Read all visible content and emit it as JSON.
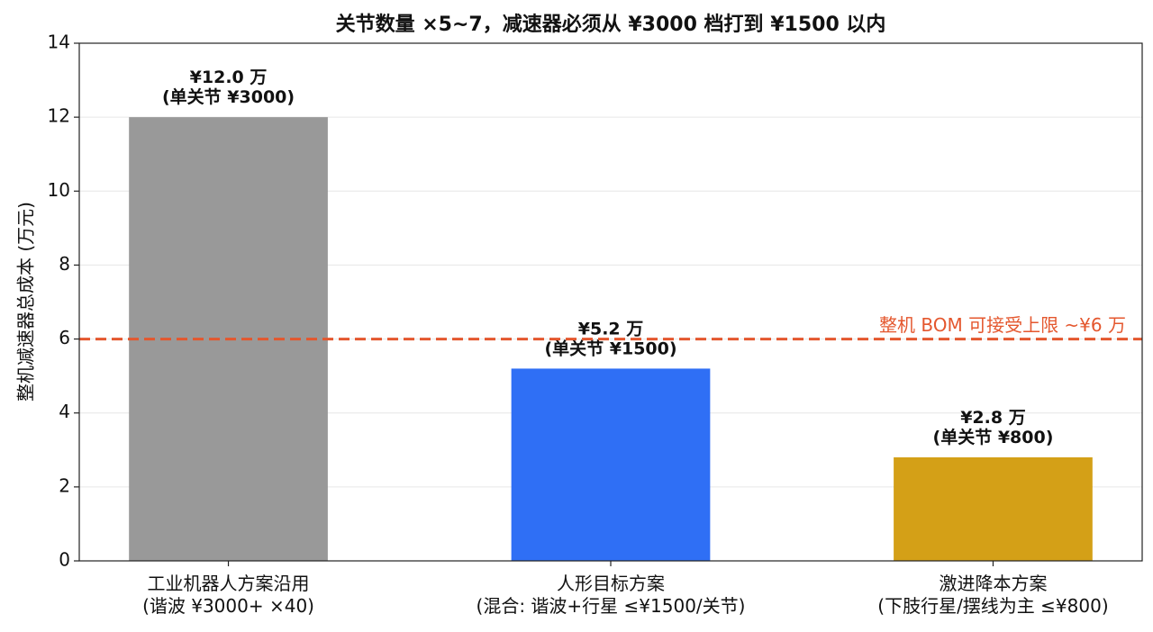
{
  "chart_data": {
    "type": "bar",
    "title": "关节数量 ×5~7，减速器必须从 ¥3000 档打到 ¥1500 以内",
    "y_label": "整机减速器总成本 (万元)",
    "categories": [
      "工业机器人方案沿用\n(谐波 ¥3000+ ×40)",
      "人形目标方案\n(混合: 谐波+行星 ≤¥1500/关节)",
      "激进降本方案\n(下肢行星/摆线为主 ≤¥800)"
    ],
    "values": [
      12.0,
      5.2,
      2.8
    ],
    "value_labels": [
      "¥12.0 万\n(单关节 ¥3000)",
      "¥5.2 万\n(单关节 ¥1500)",
      "¥2.8 万\n(单关节 ¥800)"
    ],
    "colors": [
      "#999999",
      "#2f6ff5",
      "#d4a017"
    ],
    "ylim": [
      0,
      14
    ],
    "yticks": [
      0,
      2,
      4,
      6,
      8,
      10,
      12,
      14
    ],
    "grid": true,
    "reference_line": {
      "value": 6,
      "label": "整机 BOM 可接受上限 ~¥6 万",
      "color": "#e4572e"
    }
  }
}
